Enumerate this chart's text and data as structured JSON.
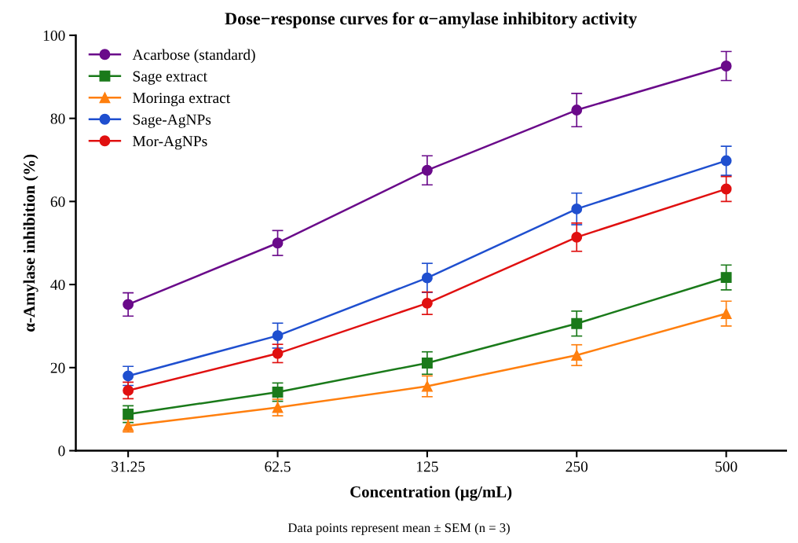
{
  "chart_data": {
    "type": "line",
    "title": "Dose−response curves for α−amylase inhibitory activity",
    "xlabel": "Concentration (µg/mL)",
    "ylabel": "α-Amylase inhibition (%)",
    "annotations": [
      "Data points represent mean ± SEM (n = 3)"
    ],
    "categories": [
      "31.25",
      "62.5",
      "125",
      "250",
      "500"
    ],
    "ylim": [
      0,
      100
    ],
    "yticks": [
      0,
      20,
      40,
      60,
      80,
      100
    ],
    "grid": false,
    "legend": "top left",
    "series": [
      {
        "name": "Acarbose (standard)",
        "color": "#6a0a8a",
        "marker": "circle",
        "values": [
          35.2,
          50,
          67.5,
          82,
          92.6
        ],
        "errors": [
          2.8,
          3,
          3.5,
          4,
          3.5
        ]
      },
      {
        "name": "Sage extract",
        "color": "#1a7a1a",
        "marker": "square",
        "values": [
          8.8,
          14.1,
          21.1,
          30.6,
          41.7
        ],
        "errors": [
          2,
          2.2,
          2.7,
          3,
          3
        ]
      },
      {
        "name": "Moringa extract",
        "color": "#ff7f0e",
        "marker": "triangle",
        "values": [
          6,
          10.4,
          15.5,
          23,
          33
        ],
        "errors": [
          1.5,
          2,
          2.5,
          2.5,
          3
        ]
      },
      {
        "name": "Sage-AgNPs",
        "color": "#1f4fcf",
        "marker": "circle",
        "values": [
          18,
          27.7,
          41.6,
          58.2,
          69.8
        ],
        "errors": [
          2.3,
          3,
          3.5,
          3.8,
          3.5
        ]
      },
      {
        "name": "Mor-AgNPs",
        "color": "#e01010",
        "marker": "circle",
        "values": [
          14.5,
          23.4,
          35.5,
          51.4,
          63
        ],
        "errors": [
          2,
          2.2,
          2.7,
          3.4,
          3
        ]
      }
    ]
  }
}
